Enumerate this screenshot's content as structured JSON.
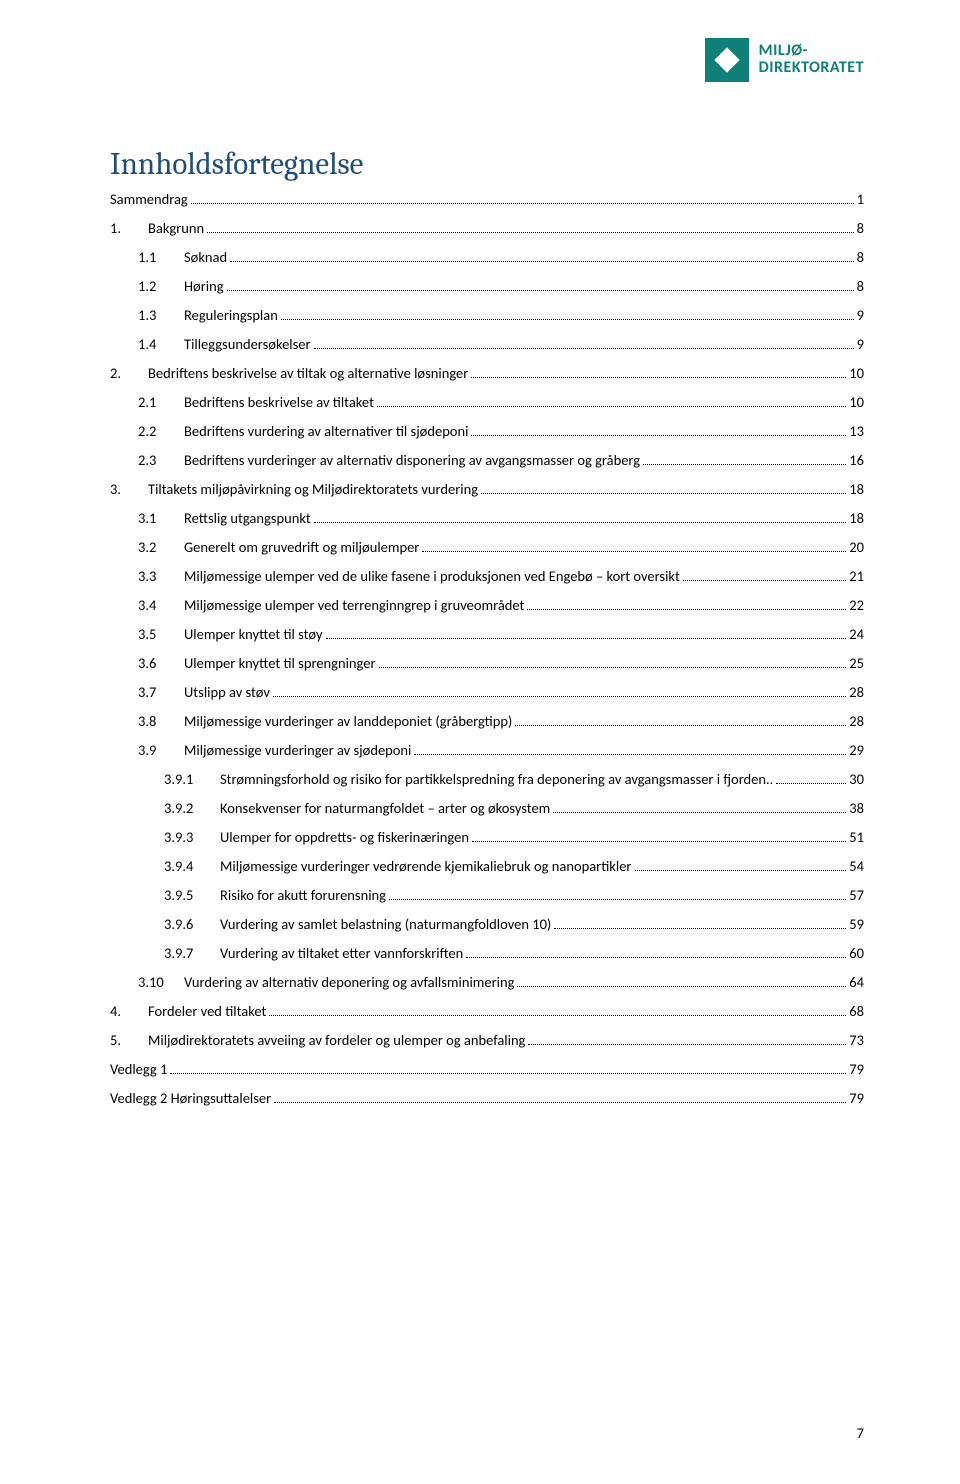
{
  "logo": {
    "line1": "MILJØ-",
    "line2": "DIREKTORATET"
  },
  "title": "Innholdsfortegnelse",
  "page_number": "7",
  "toc": [
    {
      "level": 1,
      "num": "",
      "label": "Sammendrag",
      "page": "1"
    },
    {
      "level": 1,
      "num": "1.",
      "label": "Bakgrunn",
      "page": "8"
    },
    {
      "level": 2,
      "num": "1.1",
      "label": "Søknad",
      "page": "8"
    },
    {
      "level": 2,
      "num": "1.2",
      "label": "Høring",
      "page": "8"
    },
    {
      "level": 2,
      "num": "1.3",
      "label": "Reguleringsplan",
      "page": "9"
    },
    {
      "level": 2,
      "num": "1.4",
      "label": "Tilleggsundersøkelser",
      "page": "9"
    },
    {
      "level": 1,
      "num": "2.",
      "label": "Bedriftens beskrivelse av tiltak og alternative løsninger",
      "page": "10"
    },
    {
      "level": 2,
      "num": "2.1",
      "label": "Bedriftens beskrivelse av tiltaket",
      "page": "10"
    },
    {
      "level": 2,
      "num": "2.2",
      "label": "Bedriftens vurdering av alternativer til sjødeponi",
      "page": "13"
    },
    {
      "level": 2,
      "num": "2.3",
      "label": "Bedriftens vurderinger av alternativ disponering av avgangsmasser og gråberg",
      "page": "16"
    },
    {
      "level": 1,
      "num": "3.",
      "label": "Tiltakets miljøpåvirkning og Miljødirektoratets vurdering",
      "page": "18"
    },
    {
      "level": 2,
      "num": "3.1",
      "label": "Rettslig utgangspunkt",
      "page": "18"
    },
    {
      "level": 2,
      "num": "3.2",
      "label": "Generelt om gruvedrift og miljøulemper",
      "page": "20"
    },
    {
      "level": 2,
      "num": "3.3",
      "label": "Miljømessige ulemper ved de ulike fasene i produksjonen ved Engebø – kort oversikt",
      "page": "21"
    },
    {
      "level": 2,
      "num": "3.4",
      "label": "Miljømessige ulemper ved terrenginngrep i gruveområdet",
      "page": "22"
    },
    {
      "level": 2,
      "num": "3.5",
      "label": "Ulemper knyttet til støy",
      "page": "24"
    },
    {
      "level": 2,
      "num": "3.6",
      "label": "Ulemper knyttet til sprengninger",
      "page": "25"
    },
    {
      "level": 2,
      "num": "3.7",
      "label": "Utslipp av støv",
      "page": "28"
    },
    {
      "level": 2,
      "num": "3.8",
      "label": "Miljømessige vurderinger av landdeponiet (gråbergtipp)",
      "page": "28"
    },
    {
      "level": 2,
      "num": "3.9",
      "label": "Miljømessige vurderinger av sjødeponi",
      "page": "29"
    },
    {
      "level": 3,
      "num": "3.9.1",
      "label": "Strømningsforhold og risiko for partikkelspredning fra deponering av avgangsmasser i fjorden..",
      "page": "30"
    },
    {
      "level": 3,
      "num": "3.9.2",
      "label": "Konsekvenser for naturmangfoldet – arter og økosystem",
      "page": "38"
    },
    {
      "level": 3,
      "num": "3.9.3",
      "label": "Ulemper for oppdretts- og fiskerinæringen",
      "page": "51"
    },
    {
      "level": 3,
      "num": "3.9.4",
      "label": "Miljømessige vurderinger vedrørende kjemikaliebruk og nanopartikler",
      "page": "54"
    },
    {
      "level": 3,
      "num": "3.9.5",
      "label": "Risiko for akutt forurensning",
      "page": "57"
    },
    {
      "level": 3,
      "num": "3.9.6",
      "label": "Vurdering av samlet belastning (naturmangfoldloven 10)",
      "page": "59"
    },
    {
      "level": 3,
      "num": "3.9.7",
      "label": "Vurdering av tiltaket etter vannforskriften",
      "page": "60"
    },
    {
      "level": 2,
      "num": "3.10",
      "label": "Vurdering av alternativ deponering og avfallsminimering",
      "page": "64"
    },
    {
      "level": 1,
      "num": "4.",
      "label": "Fordeler ved tiltaket",
      "page": "68"
    },
    {
      "level": 1,
      "num": "5.",
      "label": "Miljødirektoratets avveiing av fordeler og ulemper og anbefaling",
      "page": "73"
    },
    {
      "level": 1,
      "num": "",
      "label": "Vedlegg 1",
      "page": "79"
    },
    {
      "level": 1,
      "num": "",
      "label": "Vedlegg 2 Høringsuttalelser",
      "page": "79"
    }
  ]
}
